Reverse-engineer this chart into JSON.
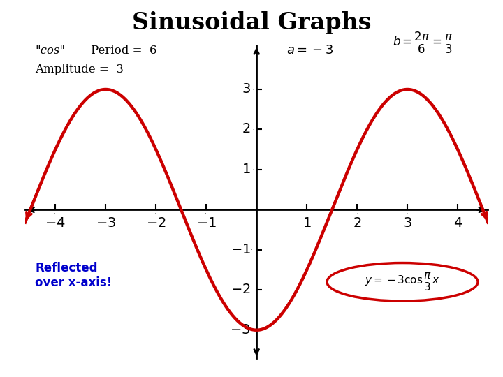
{
  "title": "Sinusoidal Graphs",
  "title_fontsize": 24,
  "curve_color": "#cc0000",
  "axis_color": "#000000",
  "text_color_blue": "#0000cc",
  "background_color": "#ffffff",
  "xlim": [
    -4.6,
    4.6
  ],
  "ylim": [
    -3.7,
    4.1
  ],
  "xticks": [
    -4,
    -3,
    -2,
    -1,
    1,
    2,
    3,
    4
  ],
  "yticks": [
    -3,
    -2,
    -1,
    1,
    2,
    3
  ],
  "amplitude": -3,
  "b": 1.0471975511965976,
  "line_width": 3.2
}
